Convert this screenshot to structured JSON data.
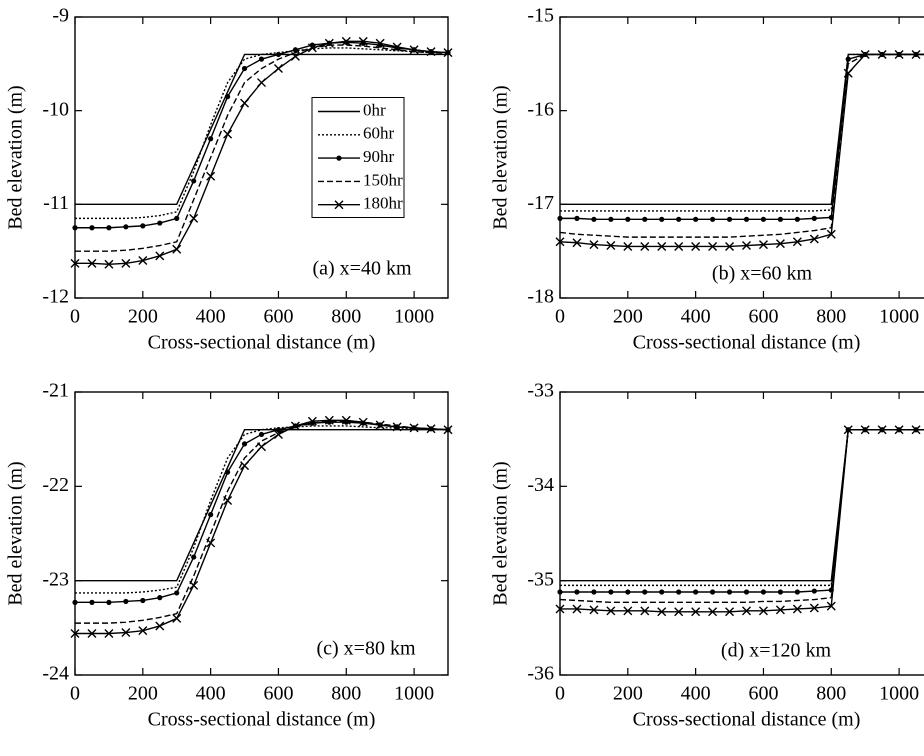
{
  "chart_data": [
    {
      "type": "line",
      "annotation": "(a) x=40 km",
      "xlabel": "Cross-sectional distance (m)",
      "ylabel": "Bed elevation (m)",
      "xlim": [
        0,
        1100
      ],
      "ylim": [
        -12,
        -9
      ],
      "xticks": [
        0,
        200,
        400,
        600,
        800,
        1000
      ],
      "yticks": [
        -12,
        -11,
        -10,
        -9
      ],
      "legend": "center right",
      "x": [
        0,
        50,
        100,
        150,
        200,
        250,
        300,
        350,
        400,
        450,
        500,
        550,
        600,
        650,
        700,
        750,
        800,
        850,
        900,
        950,
        1000,
        1050,
        1100
      ],
      "series": [
        {
          "name": "0hr",
          "color": "#000000",
          "line_style": "solid",
          "marker": "none",
          "values": [
            -11,
            -11,
            -11,
            -11,
            -11,
            -11,
            -11,
            -10.6,
            -10.2,
            -9.8,
            -9.4,
            -9.4,
            -9.4,
            -9.4,
            -9.4,
            -9.4,
            -9.4,
            -9.4,
            -9.4,
            -9.4,
            -9.4,
            -9.4,
            -9.4
          ]
        },
        {
          "name": "60hr",
          "color": "#000000",
          "line_style": "dotted",
          "marker": "none",
          "values": [
            -11.15,
            -11.15,
            -11.15,
            -11.15,
            -11.14,
            -11.12,
            -11.08,
            -10.65,
            -10.15,
            -9.7,
            -9.45,
            -9.4,
            -9.38,
            -9.36,
            -9.34,
            -9.33,
            -9.33,
            -9.34,
            -9.35,
            -9.36,
            -9.37,
            -9.38,
            -9.38
          ]
        },
        {
          "name": "90hr",
          "color": "#000000",
          "line_style": "solid",
          "marker": "dot",
          "values": [
            -11.25,
            -11.25,
            -11.25,
            -11.24,
            -11.23,
            -11.2,
            -11.15,
            -10.75,
            -10.3,
            -9.85,
            -9.55,
            -9.45,
            -9.4,
            -9.35,
            -9.3,
            -9.28,
            -9.27,
            -9.28,
            -9.3,
            -9.33,
            -9.35,
            -9.37,
            -9.38
          ]
        },
        {
          "name": "150hr",
          "color": "#000000",
          "line_style": "dashed",
          "marker": "none",
          "values": [
            -11.5,
            -11.5,
            -11.5,
            -11.49,
            -11.47,
            -11.44,
            -11.4,
            -10.95,
            -10.5,
            -10.05,
            -9.7,
            -9.55,
            -9.45,
            -9.38,
            -9.33,
            -9.3,
            -9.3,
            -9.31,
            -9.33,
            -9.35,
            -9.37,
            -9.38,
            -9.39
          ]
        },
        {
          "name": "180hr",
          "color": "#000000",
          "line_style": "solid",
          "marker": "x",
          "values": [
            -11.63,
            -11.63,
            -11.64,
            -11.63,
            -11.6,
            -11.55,
            -11.48,
            -11.15,
            -10.7,
            -10.25,
            -9.92,
            -9.7,
            -9.55,
            -9.42,
            -9.33,
            -9.28,
            -9.26,
            -9.26,
            -9.28,
            -9.32,
            -9.35,
            -9.37,
            -9.38
          ]
        }
      ]
    },
    {
      "type": "line",
      "annotation": "(b) x=60 km",
      "xlabel": "Cross-sectional distance (m)",
      "ylabel": "Bed elevation (m)",
      "xlim": [
        0,
        1100
      ],
      "ylim": [
        -18,
        -15
      ],
      "xticks": [
        0,
        200,
        400,
        600,
        800,
        1000
      ],
      "yticks": [
        -18,
        -17,
        -16,
        -15
      ],
      "x": [
        0,
        50,
        100,
        150,
        200,
        250,
        300,
        350,
        400,
        450,
        500,
        550,
        600,
        650,
        700,
        750,
        800,
        850,
        900,
        950,
        1000,
        1050,
        1100
      ],
      "series": [
        {
          "color": "#000000",
          "line_style": "solid",
          "marker": "none",
          "values": [
            -17,
            -17,
            -17,
            -17,
            -17,
            -17,
            -17,
            -17,
            -17,
            -17,
            -17,
            -17,
            -17,
            -17,
            -17,
            -17,
            -17,
            -15.4,
            -15.4,
            -15.4,
            -15.4,
            -15.4,
            -15.4
          ]
        },
        {
          "color": "#000000",
          "line_style": "dotted",
          "marker": "none",
          "values": [
            -17.07,
            -17.07,
            -17.07,
            -17.07,
            -17.07,
            -17.07,
            -17.07,
            -17.07,
            -17.07,
            -17.07,
            -17.07,
            -17.07,
            -17.07,
            -17.07,
            -17.07,
            -17.07,
            -17.06,
            -15.4,
            -15.4,
            -15.4,
            -15.4,
            -15.4,
            -15.4
          ]
        },
        {
          "color": "#000000",
          "line_style": "solid",
          "marker": "dot",
          "values": [
            -17.15,
            -17.15,
            -17.16,
            -17.16,
            -17.16,
            -17.16,
            -17.16,
            -17.16,
            -17.16,
            -17.16,
            -17.16,
            -17.16,
            -17.16,
            -17.16,
            -17.16,
            -17.15,
            -17.14,
            -15.45,
            -15.4,
            -15.4,
            -15.4,
            -15.4,
            -15.4
          ]
        },
        {
          "color": "#000000",
          "line_style": "dashed",
          "marker": "none",
          "values": [
            -17.3,
            -17.32,
            -17.33,
            -17.34,
            -17.35,
            -17.35,
            -17.35,
            -17.35,
            -17.35,
            -17.35,
            -17.35,
            -17.34,
            -17.33,
            -17.32,
            -17.3,
            -17.28,
            -17.25,
            -15.5,
            -15.4,
            -15.4,
            -15.4,
            -15.4,
            -15.4
          ]
        },
        {
          "color": "#000000",
          "line_style": "solid",
          "marker": "x",
          "values": [
            -17.4,
            -17.41,
            -17.43,
            -17.44,
            -17.45,
            -17.45,
            -17.45,
            -17.45,
            -17.45,
            -17.45,
            -17.45,
            -17.44,
            -17.43,
            -17.42,
            -17.4,
            -17.37,
            -17.32,
            -15.6,
            -15.4,
            -15.4,
            -15.4,
            -15.4,
            -15.4
          ]
        }
      ]
    },
    {
      "type": "line",
      "annotation": "(c) x=80 km",
      "xlabel": "Cross-sectional distance (m)",
      "ylabel": "Bed elevation (m)",
      "xlim": [
        0,
        1100
      ],
      "ylim": [
        -24,
        -21
      ],
      "xticks": [
        0,
        200,
        400,
        600,
        800,
        1000
      ],
      "yticks": [
        -24,
        -23,
        -22,
        -21
      ],
      "x": [
        0,
        50,
        100,
        150,
        200,
        250,
        300,
        350,
        400,
        450,
        500,
        550,
        600,
        650,
        700,
        750,
        800,
        850,
        900,
        950,
        1000,
        1050,
        1100
      ],
      "series": [
        {
          "color": "#000000",
          "line_style": "solid",
          "marker": "none",
          "values": [
            -23,
            -23,
            -23,
            -23,
            -23,
            -23,
            -23,
            -22.6,
            -22.2,
            -21.8,
            -21.4,
            -21.4,
            -21.4,
            -21.4,
            -21.4,
            -21.4,
            -21.4,
            -21.4,
            -21.4,
            -21.4,
            -21.4,
            -21.4,
            -21.4
          ]
        },
        {
          "color": "#000000",
          "line_style": "dotted",
          "marker": "none",
          "values": [
            -23.13,
            -23.13,
            -23.13,
            -23.13,
            -23.12,
            -23.1,
            -23.07,
            -22.65,
            -22.15,
            -21.7,
            -21.45,
            -21.4,
            -21.38,
            -21.37,
            -21.36,
            -21.36,
            -21.36,
            -21.37,
            -21.38,
            -21.38,
            -21.39,
            -21.39,
            -21.4
          ]
        },
        {
          "color": "#000000",
          "line_style": "solid",
          "marker": "dot",
          "values": [
            -23.23,
            -23.23,
            -23.23,
            -23.22,
            -23.21,
            -23.18,
            -23.13,
            -22.75,
            -22.3,
            -21.85,
            -21.55,
            -21.45,
            -21.4,
            -21.36,
            -21.33,
            -21.32,
            -21.32,
            -21.33,
            -21.35,
            -21.37,
            -21.38,
            -21.39,
            -21.4
          ]
        },
        {
          "color": "#000000",
          "line_style": "dashed",
          "marker": "none",
          "values": [
            -23.45,
            -23.45,
            -23.45,
            -23.44,
            -23.42,
            -23.39,
            -23.35,
            -22.95,
            -22.5,
            -22.05,
            -21.7,
            -21.52,
            -21.43,
            -21.37,
            -21.33,
            -21.31,
            -21.31,
            -21.32,
            -21.34,
            -21.36,
            -21.38,
            -21.39,
            -21.4
          ]
        },
        {
          "color": "#000000",
          "line_style": "solid",
          "marker": "x",
          "values": [
            -23.56,
            -23.56,
            -23.56,
            -23.55,
            -23.53,
            -23.48,
            -23.4,
            -23.05,
            -22.6,
            -22.15,
            -21.78,
            -21.58,
            -21.45,
            -21.36,
            -21.31,
            -21.3,
            -21.3,
            -21.32,
            -21.35,
            -21.37,
            -21.38,
            -21.39,
            -21.4
          ]
        }
      ]
    },
    {
      "type": "line",
      "annotation": "(d) x=120 km",
      "xlabel": "Cross-sectional distance (m)",
      "ylabel": "Bed elevation (m)",
      "xlim": [
        0,
        1100
      ],
      "ylim": [
        -36,
        -33
      ],
      "xticks": [
        0,
        200,
        400,
        600,
        800,
        1000
      ],
      "yticks": [
        -36,
        -35,
        -34,
        -33
      ],
      "x": [
        0,
        50,
        100,
        150,
        200,
        250,
        300,
        350,
        400,
        450,
        500,
        550,
        600,
        650,
        700,
        750,
        800,
        850,
        900,
        950,
        1000,
        1050,
        1100
      ],
      "series": [
        {
          "color": "#000000",
          "line_style": "solid",
          "marker": "none",
          "values": [
            -35,
            -35,
            -35,
            -35,
            -35,
            -35,
            -35,
            -35,
            -35,
            -35,
            -35,
            -35,
            -35,
            -35,
            -35,
            -35,
            -35,
            -33.4,
            -33.4,
            -33.4,
            -33.4,
            -33.4,
            -33.4
          ]
        },
        {
          "color": "#000000",
          "line_style": "dotted",
          "marker": "none",
          "values": [
            -35.05,
            -35.05,
            -35.05,
            -35.05,
            -35.05,
            -35.05,
            -35.05,
            -35.05,
            -35.05,
            -35.05,
            -35.05,
            -35.05,
            -35.05,
            -35.05,
            -35.05,
            -35.05,
            -35.05,
            -33.4,
            -33.4,
            -33.4,
            -33.4,
            -33.4,
            -33.4
          ]
        },
        {
          "color": "#000000",
          "line_style": "solid",
          "marker": "dot",
          "values": [
            -35.12,
            -35.12,
            -35.12,
            -35.12,
            -35.12,
            -35.12,
            -35.12,
            -35.12,
            -35.12,
            -35.12,
            -35.12,
            -35.12,
            -35.12,
            -35.12,
            -35.12,
            -35.11,
            -35.1,
            -33.4,
            -33.4,
            -33.4,
            -33.4,
            -33.4,
            -33.4
          ]
        },
        {
          "color": "#000000",
          "line_style": "dashed",
          "marker": "none",
          "values": [
            -35.2,
            -35.21,
            -35.22,
            -35.23,
            -35.23,
            -35.23,
            -35.23,
            -35.23,
            -35.23,
            -35.23,
            -35.23,
            -35.23,
            -35.22,
            -35.22,
            -35.21,
            -35.2,
            -35.18,
            -33.4,
            -33.4,
            -33.4,
            -33.4,
            -33.4,
            -33.4
          ]
        },
        {
          "color": "#000000",
          "line_style": "solid",
          "marker": "x",
          "values": [
            -35.3,
            -35.3,
            -35.31,
            -35.32,
            -35.32,
            -35.32,
            -35.33,
            -35.33,
            -35.33,
            -35.33,
            -35.33,
            -35.32,
            -35.32,
            -35.31,
            -35.3,
            -35.29,
            -35.27,
            -33.4,
            -33.4,
            -33.4,
            -33.4,
            -33.4,
            -33.4
          ]
        }
      ]
    }
  ]
}
